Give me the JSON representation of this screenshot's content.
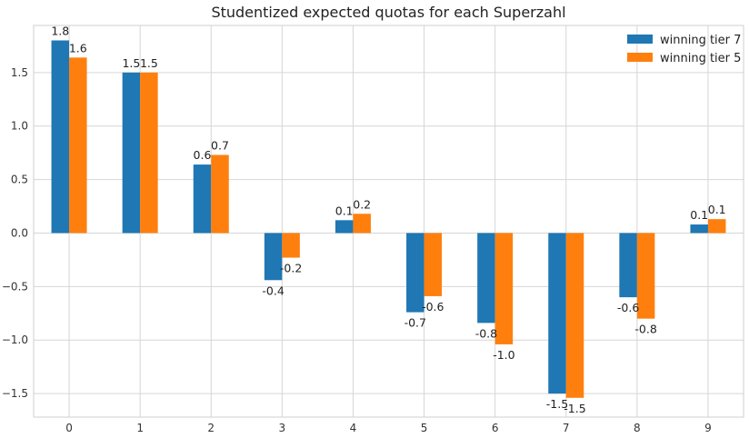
{
  "chart_data": {
    "type": "bar",
    "title": "Studentized expected quotas for each Superzahl",
    "xlabel": "",
    "ylabel": "",
    "categories": [
      "0",
      "1",
      "2",
      "3",
      "4",
      "5",
      "6",
      "7",
      "8",
      "9"
    ],
    "series": [
      {
        "name": "winning tier 7",
        "color": "#1f77b4",
        "values": [
          1.8,
          1.5,
          0.64,
          -0.44,
          0.12,
          -0.74,
          -0.84,
          -1.5,
          -0.6,
          0.08
        ],
        "labels": [
          "1.8",
          "1.5",
          "0.6",
          "-0.4",
          "0.1",
          "-0.7",
          "-0.8",
          "-1.5",
          "-0.6",
          "0.1"
        ]
      },
      {
        "name": "winning tier 5",
        "color": "#ff7f0e",
        "values": [
          1.64,
          1.5,
          0.73,
          -0.23,
          0.18,
          -0.59,
          -1.04,
          -1.54,
          -0.8,
          0.13
        ],
        "labels": [
          "1.6",
          "1.5",
          "0.7",
          "-0.2",
          "0.2",
          "-0.6",
          "-1.0",
          "-1.5",
          "-0.8",
          "0.1"
        ]
      }
    ],
    "ylim": [
      -1.72,
      1.94
    ],
    "yticks": [
      -1.5,
      -1.0,
      -0.5,
      0.0,
      0.5,
      1.0,
      1.5
    ],
    "ytick_labels": [
      "−1.5",
      "−1.0",
      "−0.5",
      "0.0",
      "0.5",
      "1.0",
      "1.5"
    ],
    "grid": true,
    "legend_position": "top-right"
  }
}
